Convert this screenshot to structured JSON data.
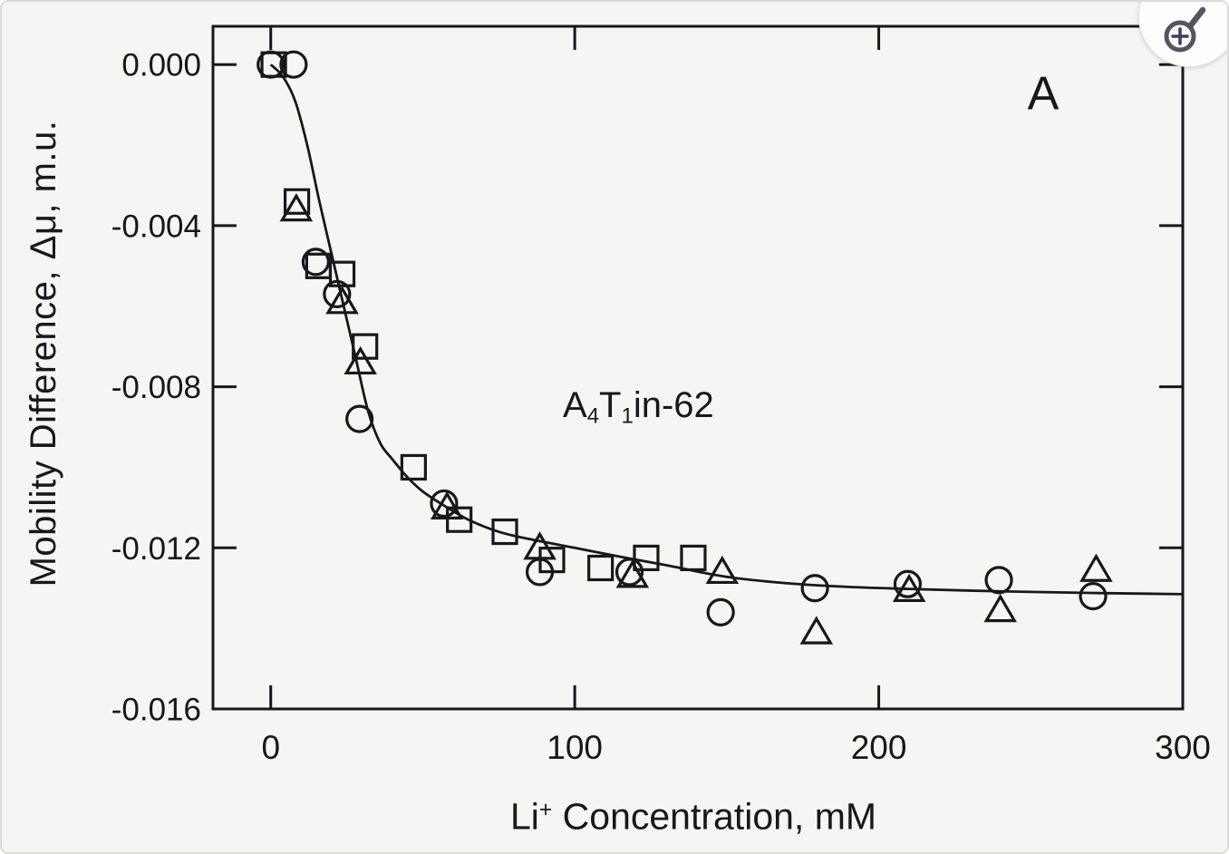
{
  "panel_label": "A",
  "annotation": {
    "plain": "A4T1in-62",
    "segments": [
      {
        "type": "text",
        "value": "A"
      },
      {
        "type": "sub",
        "value": "4"
      },
      {
        "type": "text",
        "value": "T"
      },
      {
        "type": "sub",
        "value": "1"
      },
      {
        "type": "text",
        "value": "in-62"
      }
    ]
  },
  "colors": {
    "ink": "#17171c",
    "background": "#f5f6f4",
    "icon_ring": "#59535f",
    "icon_plus": "#473b5e",
    "icon_badge": "#fdfdfc"
  },
  "icons": {
    "corner_button": "magnifier-with-plus (zoom-in)"
  },
  "chart_data": {
    "type": "scatter",
    "title": "",
    "panel": "A",
    "xlabel": "Li+ Concentration, mM",
    "xlabel_segments": [
      {
        "type": "text",
        "value": "Li"
      },
      {
        "type": "sup",
        "value": "+"
      },
      {
        "type": "text",
        "value": " Concentration, mM"
      }
    ],
    "ylabel": "Mobility Difference, Δμ, m.u.",
    "annotation": "A4T1in-62",
    "grid": false,
    "legend": "none",
    "xlim": [
      -19,
      300
    ],
    "ylim": [
      -0.016,
      0.00095
    ],
    "x_ticks": [
      {
        "value": 0,
        "label": "0"
      },
      {
        "value": 100,
        "label": "100"
      },
      {
        "value": 200,
        "label": "200"
      },
      {
        "value": 300,
        "label": "300"
      }
    ],
    "y_ticks": [
      {
        "value": 0.0,
        "label": "0.000"
      },
      {
        "value": -0.004,
        "label": "-0.004"
      },
      {
        "value": -0.008,
        "label": "-0.008"
      },
      {
        "value": -0.012,
        "label": "-0.012"
      },
      {
        "value": -0.016,
        "label": "-0.016"
      }
    ],
    "series": [
      {
        "name": "circles-run",
        "marker": "circle",
        "points": [
          [
            0,
            0
          ],
          [
            7.5,
            0
          ],
          [
            14.8,
            -0.0049
          ],
          [
            21.8,
            -0.0057
          ],
          [
            29.2,
            -0.0088
          ],
          [
            57,
            -0.0109
          ],
          [
            88.5,
            -0.0126
          ],
          [
            118,
            -0.0126
          ],
          [
            148,
            -0.0136
          ],
          [
            179,
            -0.013
          ],
          [
            209.5,
            -0.0129
          ],
          [
            239.5,
            -0.0128
          ],
          [
            270.5,
            -0.0132
          ]
        ]
      },
      {
        "name": "squares-run",
        "marker": "square",
        "points": [
          [
            1,
            0
          ],
          [
            8.6,
            -0.0034
          ],
          [
            15.7,
            -0.005
          ],
          [
            23.5,
            -0.0052
          ],
          [
            31,
            -0.007
          ],
          [
            47,
            -0.01
          ],
          [
            62,
            -0.0113
          ],
          [
            77,
            -0.0116
          ],
          [
            92.5,
            -0.0123
          ],
          [
            108.5,
            -0.0125
          ],
          [
            123.5,
            -0.01225
          ],
          [
            139,
            -0.01225
          ]
        ]
      },
      {
        "name": "triangles-run",
        "marker": "triangle",
        "points": [
          [
            8.4,
            -0.0036
          ],
          [
            23.5,
            -0.0059
          ],
          [
            29.5,
            -0.0074
          ],
          [
            58,
            -0.011
          ],
          [
            88.5,
            -0.012
          ],
          [
            119,
            -0.0127
          ],
          [
            148.5,
            -0.0126
          ],
          [
            179.5,
            -0.0141
          ],
          [
            210,
            -0.01305
          ],
          [
            240,
            -0.01355
          ],
          [
            271.5,
            -0.01255
          ]
        ]
      }
    ],
    "fit_curve": {
      "name": "fitted-binding-curve",
      "points": [
        [
          0,
          0
        ],
        [
          4,
          -0.0003
        ],
        [
          8,
          -0.0009
        ],
        [
          12,
          -0.002
        ],
        [
          16,
          -0.0034
        ],
        [
          20,
          -0.0047
        ],
        [
          24,
          -0.006
        ],
        [
          28,
          -0.0073
        ],
        [
          32,
          -0.0086
        ],
        [
          36,
          -0.0094
        ],
        [
          40,
          -0.0098
        ],
        [
          45,
          -0.01025
        ],
        [
          50,
          -0.0106
        ],
        [
          57,
          -0.01095
        ],
        [
          65,
          -0.0113
        ],
        [
          75,
          -0.0116
        ],
        [
          85,
          -0.01178
        ],
        [
          100,
          -0.012
        ],
        [
          115,
          -0.01222
        ],
        [
          130,
          -0.01243
        ],
        [
          150,
          -0.01272
        ],
        [
          170,
          -0.01288
        ],
        [
          190,
          -0.01297
        ],
        [
          210,
          -0.01302
        ],
        [
          240,
          -0.01308
        ],
        [
          270,
          -0.01312
        ],
        [
          300,
          -0.01315
        ]
      ]
    }
  }
}
